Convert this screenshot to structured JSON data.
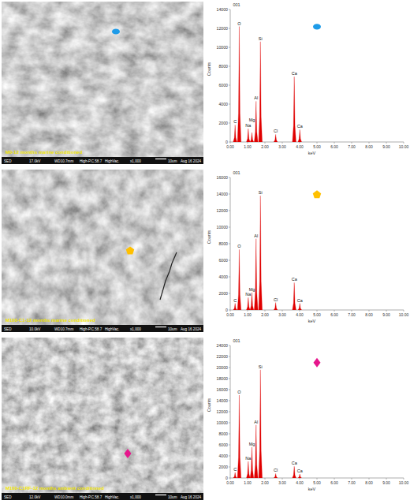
{
  "sem_images": [
    {
      "label": "M0-12 months marine conditioned",
      "info": [
        "SED",
        "17.0kV",
        "WD10.7mm",
        "High-P.C.58.7",
        "HighVac.",
        "x1,000",
        "10um",
        "Aug 16 2024"
      ],
      "marker": "ellipse",
      "marker_color": "#1e9be8"
    },
    {
      "label": "M100-C1-12 months marine conditioned",
      "info": [
        "SED",
        "10.0kV",
        "WD10.7mm",
        "High-P.C.58.7",
        "HighVac.",
        "x1,000",
        "10um",
        "Aug 16 2024"
      ],
      "marker": "pentagon",
      "marker_color": "#ffc000"
    },
    {
      "label": "M100-C1RF-12 months ambient conditioned",
      "info": [
        "SED",
        "12.0kV",
        "WD10.0mm",
        "High-P.C.58.7",
        "HighVac.",
        "x1,000",
        "10um",
        "Aug 16 2024"
      ],
      "marker": "diamond",
      "marker_color": "#e6168c"
    }
  ],
  "chart_data": [
    {
      "type": "spectrum",
      "title": "001",
      "x_label": "keV",
      "y_label": "Counts",
      "color": "#e00000",
      "grid": false,
      "x": [
        0.28,
        0.52,
        1.04,
        1.25,
        1.49,
        1.74,
        2.62,
        3.69,
        4.01
      ],
      "values": [
        1800,
        12200,
        1400,
        1000,
        4300,
        10600,
        800,
        6900,
        1300
      ],
      "peak_labels": [
        "C",
        "O",
        "Na",
        "Mg",
        "Al",
        "Si",
        "Cl",
        "Ca",
        "Ca"
      ],
      "xlim": [
        0,
        10
      ],
      "xticks": [
        {
          "value": 0,
          "label": "0.00"
        },
        {
          "value": 1,
          "label": "1.00"
        },
        {
          "value": 2,
          "label": "2.00"
        },
        {
          "value": 3,
          "label": "3.00"
        },
        {
          "value": 4,
          "label": "4.00"
        },
        {
          "value": 5,
          "label": "5.00"
        },
        {
          "value": 6,
          "label": "6.00"
        },
        {
          "value": 7,
          "label": "7.00"
        },
        {
          "value": 8,
          "label": "8.00"
        },
        {
          "value": 9,
          "label": "9.00"
        },
        {
          "value": 10,
          "label": "10.00"
        }
      ],
      "ylim": [
        0,
        14000
      ],
      "yticks": [
        0,
        2000,
        4000,
        6000,
        8000,
        10000,
        12000,
        14000
      ]
    },
    {
      "type": "spectrum",
      "title": "001",
      "x_label": "keV",
      "y_label": "Counts",
      "color": "#e00000",
      "grid": false,
      "x": [
        0.28,
        0.52,
        1.04,
        1.25,
        1.49,
        1.74,
        2.62,
        3.69,
        4.01
      ],
      "values": [
        800,
        7300,
        1500,
        2100,
        8600,
        13800,
        900,
        3300,
        800
      ],
      "peak_labels": [
        "C",
        "O",
        "Na",
        "Mg",
        "Al",
        "Si",
        "Cl",
        "Ca",
        "Ca"
      ],
      "xlim": [
        0,
        10
      ],
      "xticks": [
        {
          "value": 0,
          "label": "0.00"
        },
        {
          "value": 1,
          "label": "1.00"
        },
        {
          "value": 2,
          "label": "2.00"
        },
        {
          "value": 3,
          "label": "3.00"
        },
        {
          "value": 4,
          "label": "4.00"
        },
        {
          "value": 5,
          "label": "5.00"
        },
        {
          "value": 6,
          "label": "6.00"
        },
        {
          "value": 7,
          "label": "7.00"
        },
        {
          "value": 8,
          "label": "8.00"
        },
        {
          "value": 9,
          "label": "9.00"
        },
        {
          "value": 10,
          "label": "10.00"
        }
      ],
      "ylim": [
        0,
        16000
      ],
      "yticks": [
        0,
        2000,
        4000,
        6000,
        8000,
        10000,
        12000,
        14000,
        16000
      ]
    },
    {
      "type": "spectrum",
      "title": "001",
      "x_label": "keV",
      "y_label": "Counts",
      "color": "#e00000",
      "grid": false,
      "x": [
        0.28,
        0.52,
        1.04,
        1.25,
        1.49,
        1.74,
        2.62,
        3.69,
        4.01
      ],
      "values": [
        1000,
        15000,
        3000,
        5600,
        9600,
        19600,
        800,
        2100,
        700
      ],
      "peak_labels": [
        "C",
        "O",
        "Na",
        "Mg",
        "Al",
        "Si",
        "Cl",
        "Ca",
        "Ca"
      ],
      "xlim": [
        0,
        10
      ],
      "xticks": [
        {
          "value": 0,
          "label": "0.00"
        },
        {
          "value": 1,
          "label": "1.00"
        },
        {
          "value": 2,
          "label": "2.00"
        },
        {
          "value": 3,
          "label": "3.00"
        },
        {
          "value": 4,
          "label": "4.00"
        },
        {
          "value": 5,
          "label": "5.00"
        },
        {
          "value": 6,
          "label": "6.00"
        },
        {
          "value": 7,
          "label": "7.00"
        },
        {
          "value": 8,
          "label": "8.00"
        },
        {
          "value": 9,
          "label": "9.00"
        },
        {
          "value": 10,
          "label": "10.00"
        }
      ],
      "ylim": [
        0,
        24000
      ],
      "yticks": [
        0,
        2000,
        4000,
        6000,
        8000,
        10000,
        12000,
        14000,
        16000,
        18000,
        20000,
        22000,
        24000
      ]
    }
  ]
}
